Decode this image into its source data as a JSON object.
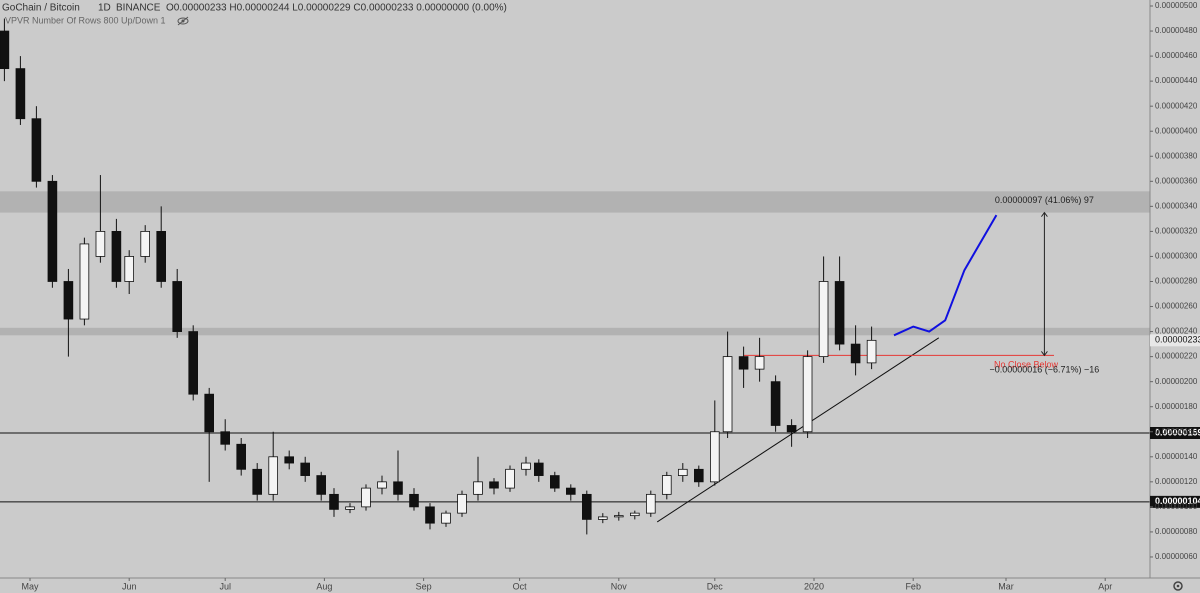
{
  "header": {
    "symbol": "GoChain / Bitcoin",
    "interval": "1D",
    "exchange": "BINANCE",
    "ohlc": "O0.00000233 H0.00000244 L0.00000229 C0.00000233 0.00000000 (0.00%)",
    "indicator": "VPVR Number Of Rows 800 Up/Down 1"
  },
  "chart_data": {
    "type": "candlestick",
    "x": [
      -8,
      -3,
      2,
      7,
      12,
      17,
      22,
      27,
      31,
      36,
      41,
      46,
      51,
      56,
      61,
      66,
      71,
      76,
      81,
      86,
      91,
      95,
      100,
      105,
      110,
      115,
      120,
      125,
      130,
      135,
      140,
      145,
      150,
      155,
      159,
      164,
      169,
      174,
      179,
      184,
      189,
      194,
      199,
      204,
      209,
      214,
      218,
      223,
      228,
      233,
      238,
      243,
      248,
      253,
      258,
      263
    ],
    "open": [
      4.8e-06,
      4.5e-06,
      4.1e-06,
      3.6e-06,
      2.8e-06,
      2.5e-06,
      3e-06,
      3.2e-06,
      2.8e-06,
      3e-06,
      3.2e-06,
      2.8e-06,
      2.4e-06,
      1.9e-06,
      1.6e-06,
      1.5e-06,
      1.3e-06,
      1.1e-06,
      1.4e-06,
      1.35e-06,
      1.25e-06,
      1.1e-06,
      9.8e-07,
      1e-06,
      1.15e-06,
      1.2e-06,
      1.1e-06,
      1e-06,
      8.7e-07,
      9.5e-07,
      1.1e-06,
      1.2e-06,
      1.15e-06,
      1.3e-06,
      1.35e-06,
      1.25e-06,
      1.15e-06,
      1.1e-06,
      9e-07,
      9.2e-07,
      9.3e-07,
      9.5e-07,
      1.1e-06,
      1.25e-06,
      1.3e-06,
      1.2e-06,
      1.6e-06,
      2.2e-06,
      2.1e-06,
      2e-06,
      1.65e-06,
      1.6e-06,
      2.2e-06,
      2.8e-06,
      2.3e-06,
      2.15e-06
    ],
    "high": [
      4.9e-06,
      4.6e-06,
      4.2e-06,
      3.65e-06,
      2.9e-06,
      3.15e-06,
      3.65e-06,
      3.3e-06,
      3.05e-06,
      3.25e-06,
      3.4e-06,
      2.9e-06,
      2.45e-06,
      1.95e-06,
      1.7e-06,
      1.55e-06,
      1.35e-06,
      1.6e-06,
      1.45e-06,
      1.4e-06,
      1.28e-06,
      1.15e-06,
      1.03e-06,
      1.18e-06,
      1.25e-06,
      1.45e-06,
      1.15e-06,
      1.03e-06,
      9.7e-07,
      1.13e-06,
      1.4e-06,
      1.23e-06,
      1.33e-06,
      1.4e-06,
      1.38e-06,
      1.28e-06,
      1.18e-06,
      1.13e-06,
      9.5e-07,
      9.6e-07,
      9.7e-07,
      1.13e-06,
      1.28e-06,
      1.35e-06,
      1.33e-06,
      1.85e-06,
      2.4e-06,
      2.28e-06,
      2.35e-06,
      2.05e-06,
      1.7e-06,
      2.25e-06,
      3e-06,
      3e-06,
      2.45e-06,
      2.44e-06
    ],
    "low": [
      4.4e-06,
      4.05e-06,
      3.55e-06,
      2.75e-06,
      2.2e-06,
      2.45e-06,
      2.95e-06,
      2.75e-06,
      2.7e-06,
      2.95e-06,
      2.75e-06,
      2.35e-06,
      1.85e-06,
      1.2e-06,
      1.45e-06,
      1.25e-06,
      1.05e-06,
      1.05e-06,
      1.3e-06,
      1.2e-06,
      1.05e-06,
      9.2e-07,
      9.5e-07,
      9.7e-07,
      1.1e-06,
      1.05e-06,
      9.7e-07,
      8.2e-07,
      8.4e-07,
      9.2e-07,
      1.05e-06,
      1.1e-06,
      1.12e-06,
      1.25e-06,
      1.2e-06,
      1.12e-06,
      1.05e-06,
      7.8e-07,
      8.7e-07,
      8.9e-07,
      9e-07,
      9.2e-07,
      1.06e-06,
      1.2e-06,
      1.16e-06,
      1.17e-06,
      1.55e-06,
      1.95e-06,
      2e-06,
      1.6e-06,
      1.48e-06,
      1.55e-06,
      2.15e-06,
      2.25e-06,
      2.05e-06,
      2.1e-06
    ],
    "close": [
      4.5e-06,
      4.1e-06,
      3.6e-06,
      2.8e-06,
      2.5e-06,
      3.1e-06,
      3.2e-06,
      2.8e-06,
      3e-06,
      3.2e-06,
      2.8e-06,
      2.4e-06,
      1.9e-06,
      1.6e-06,
      1.5e-06,
      1.3e-06,
      1.1e-06,
      1.4e-06,
      1.35e-06,
      1.25e-06,
      1.1e-06,
      9.8e-07,
      1e-06,
      1.15e-06,
      1.2e-06,
      1.1e-06,
      1e-06,
      8.7e-07,
      9.5e-07,
      1.1e-06,
      1.2e-06,
      1.15e-06,
      1.3e-06,
      1.35e-06,
      1.25e-06,
      1.15e-06,
      1.1e-06,
      9e-07,
      9.2e-07,
      9.3e-07,
      9.5e-07,
      1.1e-06,
      1.25e-06,
      1.3e-06,
      1.2e-06,
      1.6e-06,
      2.2e-06,
      2.1e-06,
      2.2e-06,
      1.65e-06,
      1.6e-06,
      2.2e-06,
      2.8e-06,
      2.3e-06,
      2.15e-06,
      2.33e-06
    ],
    "xlim": [
      -9.375,
      350
    ],
    "xticks": [
      {
        "value": 0,
        "label": "May"
      },
      {
        "value": 31,
        "label": "Jun"
      },
      {
        "value": 61,
        "label": "Jul"
      },
      {
        "value": 92,
        "label": "Aug"
      },
      {
        "value": 123,
        "label": "Sep"
      },
      {
        "value": 153,
        "label": "Oct"
      },
      {
        "value": 184,
        "label": "Nov"
      },
      {
        "value": 214,
        "label": "Dec"
      },
      {
        "value": 245,
        "label": "2020"
      },
      {
        "value": 276,
        "label": "Feb"
      },
      {
        "value": 305,
        "label": "Mar"
      },
      {
        "value": 336,
        "label": "Apr"
      }
    ],
    "ylim": [
      4.32e-07,
      5.048e-06
    ],
    "yticks": [
      {
        "value": 5e-06,
        "label": "0.00000500"
      },
      {
        "value": 4.8e-06,
        "label": "0.00000480"
      },
      {
        "value": 4.6e-06,
        "label": "0.00000460"
      },
      {
        "value": 4.4e-06,
        "label": "0.00000440"
      },
      {
        "value": 4.2e-06,
        "label": "0.00000420"
      },
      {
        "value": 4e-06,
        "label": "0.00000400"
      },
      {
        "value": 3.8e-06,
        "label": "0.00000380"
      },
      {
        "value": 3.6e-06,
        "label": "0.00000360"
      },
      {
        "value": 3.4e-06,
        "label": "0.00000340"
      },
      {
        "value": 3.2e-06,
        "label": "0.00000320"
      },
      {
        "value": 3e-06,
        "label": "0.00000300"
      },
      {
        "value": 2.8e-06,
        "label": "0.00000280"
      },
      {
        "value": 2.6e-06,
        "label": "0.00000260"
      },
      {
        "value": 2.4e-06,
        "label": "0.00000240"
      },
      {
        "value": 2.2e-06,
        "label": "0.00000220"
      },
      {
        "value": 2e-06,
        "label": "0.00000200"
      },
      {
        "value": 1.8e-06,
        "label": "0.00000180"
      },
      {
        "value": 1.6e-06,
        "label": "0.00000160"
      },
      {
        "value": 1.4e-06,
        "label": "0.00000140"
      },
      {
        "value": 1.2e-06,
        "label": "0.00000120"
      },
      {
        "value": 1e-06,
        "label": "0.00000100"
      },
      {
        "value": 8e-07,
        "label": "0.00000080"
      },
      {
        "value": 6e-07,
        "label": "0.00000060"
      }
    ],
    "levels": [
      {
        "value": 1.59e-06,
        "label": "0.00000159"
      },
      {
        "value": 1.04e-06,
        "label": "0.00000104"
      }
    ],
    "current_price": {
      "value": 2.33e-06,
      "label": "0.00000233"
    },
    "zones": [
      [
        3.35e-06,
        3.52e-06
      ],
      [
        2.37e-06,
        2.43e-06
      ]
    ],
    "trendline": {
      "x": [
        196,
        284
      ],
      "y": [
        8.8e-07,
        2.35e-06
      ]
    },
    "projection": {
      "x": [
        270,
        276,
        281,
        286,
        292,
        302
      ],
      "y": [
        2.37e-06,
        2.44e-06,
        2.4e-06,
        2.49e-06,
        2.89e-06,
        3.33e-06
      ],
      "color": "#1010e0"
    },
    "support": {
      "x": [
        223,
        320
      ],
      "value": 2.21e-06,
      "label": "No Close Below",
      "color": "#e53935"
    },
    "measure": {
      "x": 317,
      "from": 2.21e-06,
      "to": 3.35e-06,
      "up_label": "0.00000097 (41.06%) 97",
      "down_label": "−0.00000016 (−6.71%) −16"
    }
  }
}
